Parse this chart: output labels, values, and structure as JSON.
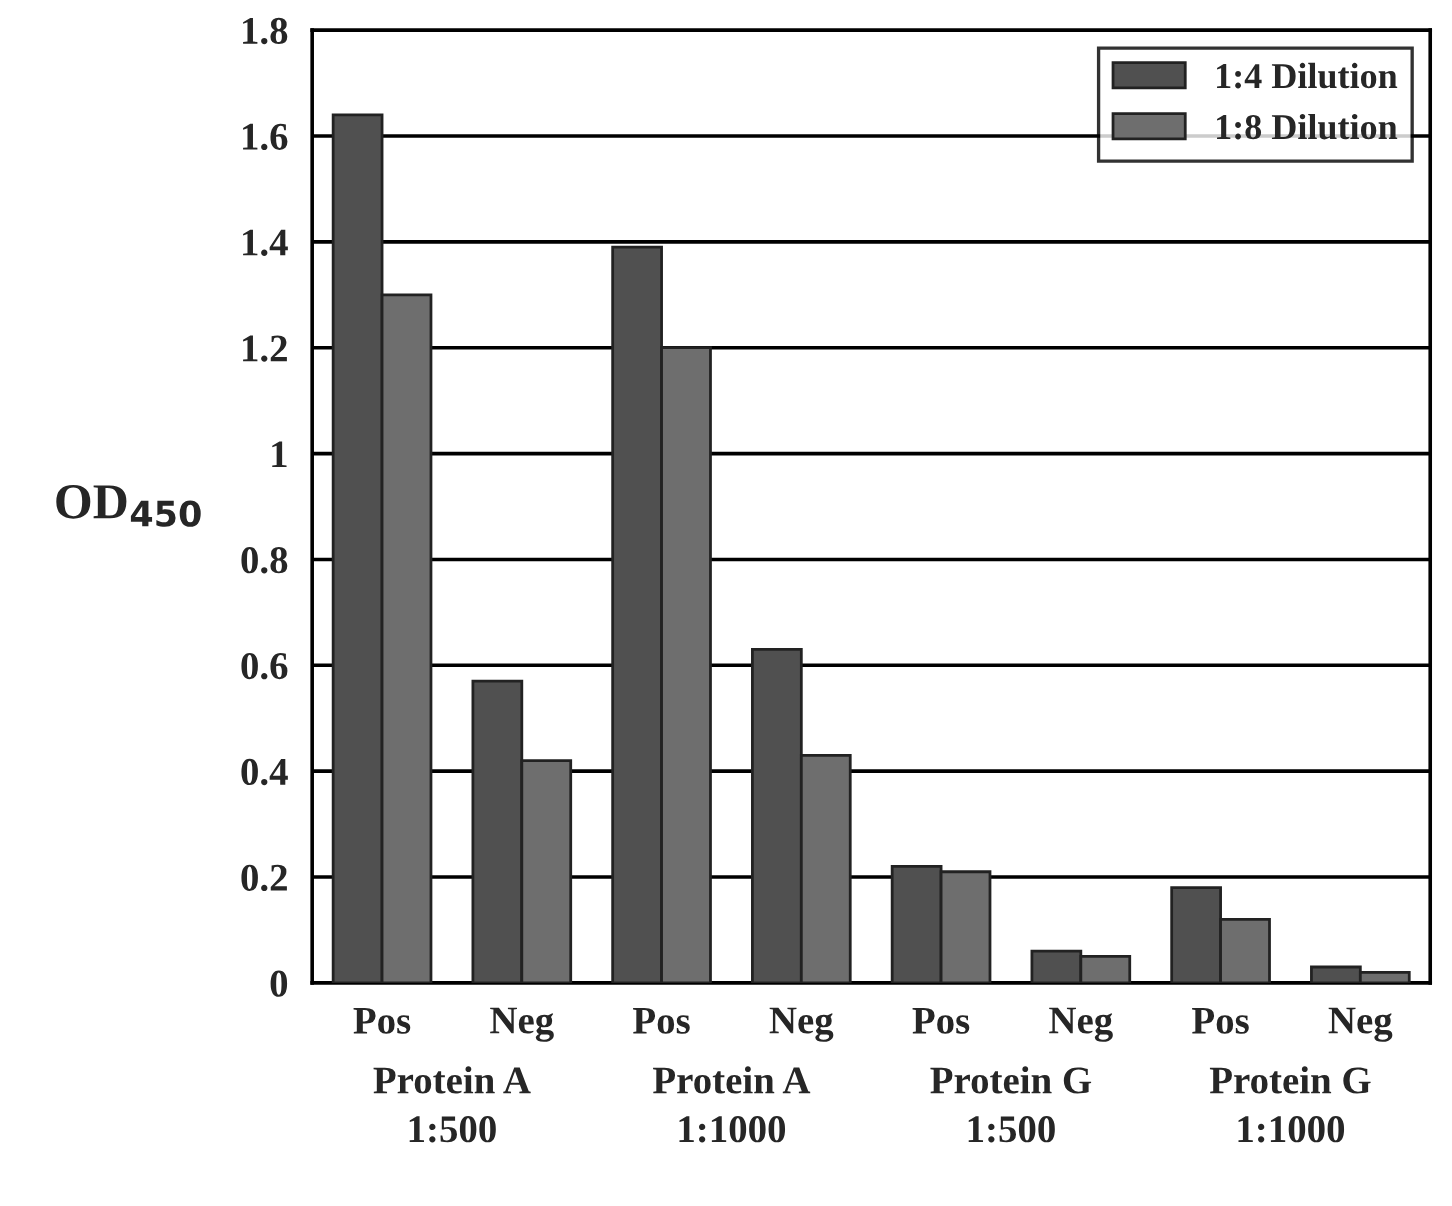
{
  "chart_data": {
    "type": "bar",
    "categories": [
      "Pos",
      "Neg",
      "Pos",
      "Neg",
      "Pos",
      "Neg",
      "Pos",
      "Neg"
    ],
    "series": [
      {
        "name": "1:4 Dilution",
        "color": "#505050",
        "values": [
          1.64,
          0.57,
          1.39,
          0.63,
          0.22,
          0.06,
          0.18,
          0.03
        ]
      },
      {
        "name": "1:8 Dilution",
        "color": "#6e6e6e",
        "values": [
          1.3,
          0.42,
          1.2,
          0.43,
          0.21,
          0.05,
          0.12,
          0.02
        ]
      }
    ],
    "ylabel": "OD$_{450}$",
    "annotations": [
      "Protein A\n1:500",
      "Protein A\n1:1000",
      "Protein G\n1:500",
      "Protein G\n1:1000"
    ],
    "ylim": [
      0,
      1.8
    ],
    "yticks": [
      0,
      0.2,
      0.4,
      0.6,
      0.8,
      1,
      1.2,
      1.4,
      1.6,
      1.8
    ],
    "grid": "y",
    "legend": "top right"
  }
}
